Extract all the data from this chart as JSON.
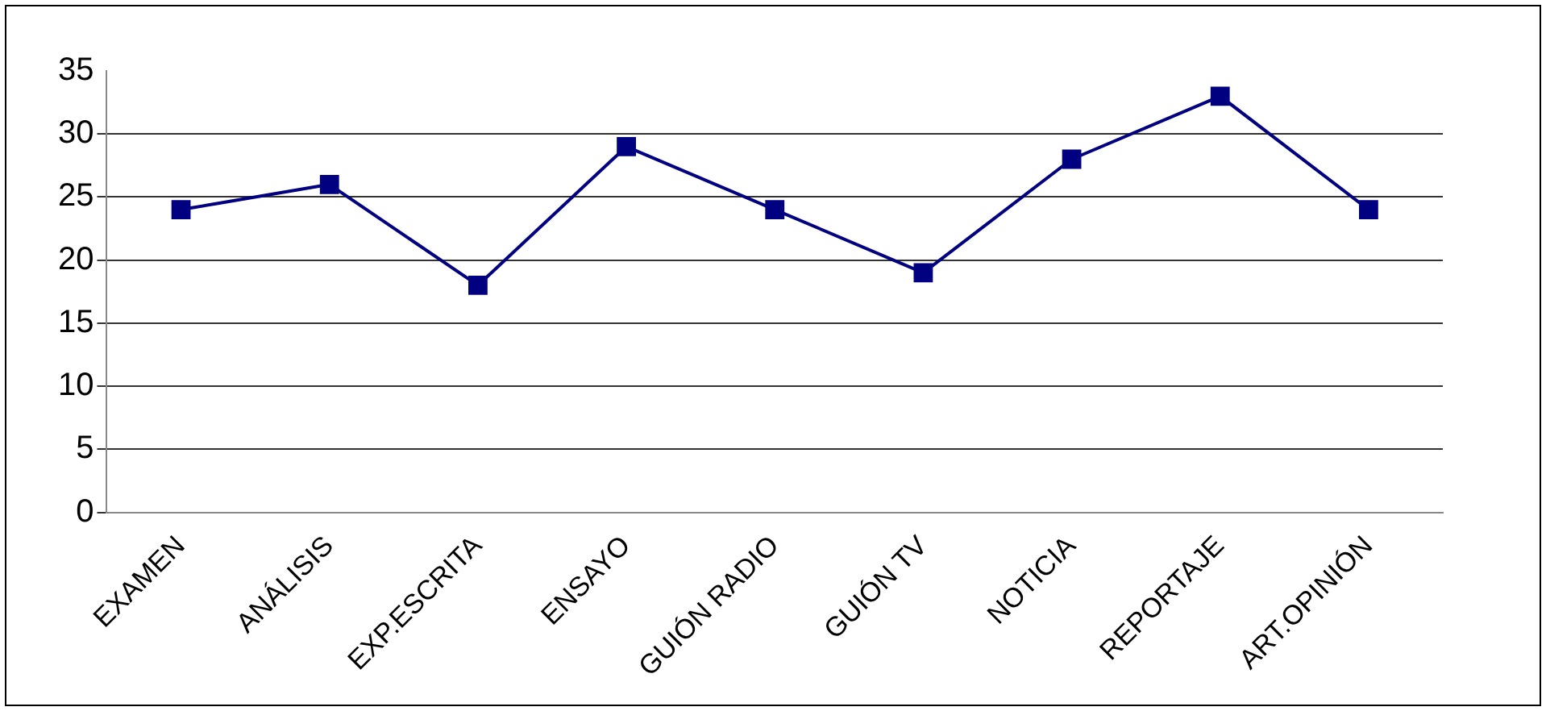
{
  "chart_data": {
    "type": "line",
    "categories": [
      "EXAMEN",
      "ANÁLISIS",
      "EXP.ESCRITA",
      "ENSAYO",
      "GUIÓN RADIO",
      "GUIÓN TV",
      "NOTICIA",
      "REPORTAJE",
      "ART.OPINIÓN"
    ],
    "series": [
      {
        "color": "#000080",
        "values": [
          24,
          26,
          18,
          29,
          24,
          19,
          28,
          33,
          24
        ]
      }
    ],
    "ylim": [
      0,
      35
    ],
    "yticks": [
      0,
      5,
      10,
      15,
      20,
      25,
      30,
      35
    ],
    "grid": "y",
    "legend": false,
    "marker": "square",
    "line_style": "solid"
  }
}
